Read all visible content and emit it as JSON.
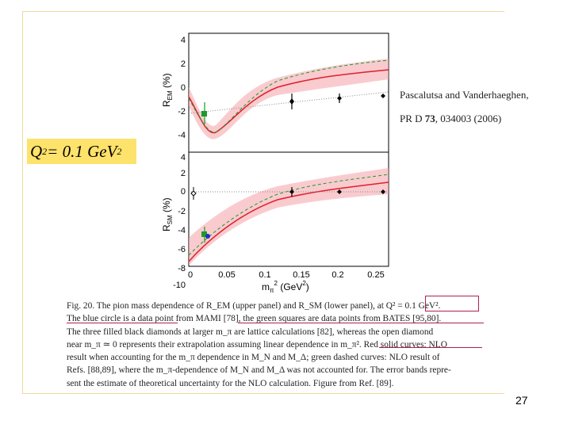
{
  "citation": {
    "line1": "Pascalutsa and Vanderhaeghen,",
    "line2_prefix": "PR D ",
    "line2_volume": "73",
    "line2_suffix": ", 034003 (2006)"
  },
  "q2_label": {
    "base": "Q",
    "exp": "2",
    "middle": " = 0.1 GeV",
    "unit_exp": "2"
  },
  "figure": {
    "upper_ylabel": "R",
    "upper_ylabel_sub": "EM",
    "upper_ylabel_unit": "(%)",
    "lower_ylabel": "R",
    "lower_ylabel_sub": "SM",
    "lower_ylabel_unit": "(%)",
    "upper_yticks": [
      "4",
      "2",
      "0",
      "-2",
      "-4"
    ],
    "lower_yticks": [
      "4",
      "2",
      "0",
      "-2",
      "-4",
      "-6",
      "-8",
      "-10"
    ],
    "xticks": [
      "0",
      "0.05",
      "0.1",
      "0.15",
      "0.2",
      "0.25"
    ],
    "xlabel": "m",
    "xlabel_sub": "π",
    "xlabel_exp": "2",
    "xlabel_unit": "(GeV",
    "xlabel_unit_exp": "2",
    "xlabel_close": ")"
  },
  "caption": {
    "lines": [
      "Fig. 20. The pion mass dependence of R_EM (upper panel) and R_SM (lower panel), at Q² = 0.1 GeV².",
      "The blue circle is a data point from MAMI [78], the green squares are data points from BATES [95,80].",
      "The three filled black diamonds at larger m_π are lattice calculations [82], whereas the open diamond",
      "near m_π ≃ 0 represents their extrapolation assuming linear dependence in m_π². Red solid curves: NLO",
      "result when accounting for the m_π dependence in M_N and M_Δ; green dashed curves: NLO result of",
      "Refs. [88,89], where the m_π-dependence of M_N and M_Δ was not accounted for. The error bands repre-",
      "sent the estimate of theoretical uncertainty for the NLO calculation. Figure from Ref. [89]."
    ]
  },
  "slide_number": "27",
  "colors": {
    "highlight": "#fde26b",
    "frame": "#f0d89a",
    "annotation": "#b0204a",
    "curve_red": "#e0202a",
    "band": "#f4a0a8",
    "data_green": "#1a9a2a",
    "data_blue": "#2030c0"
  }
}
